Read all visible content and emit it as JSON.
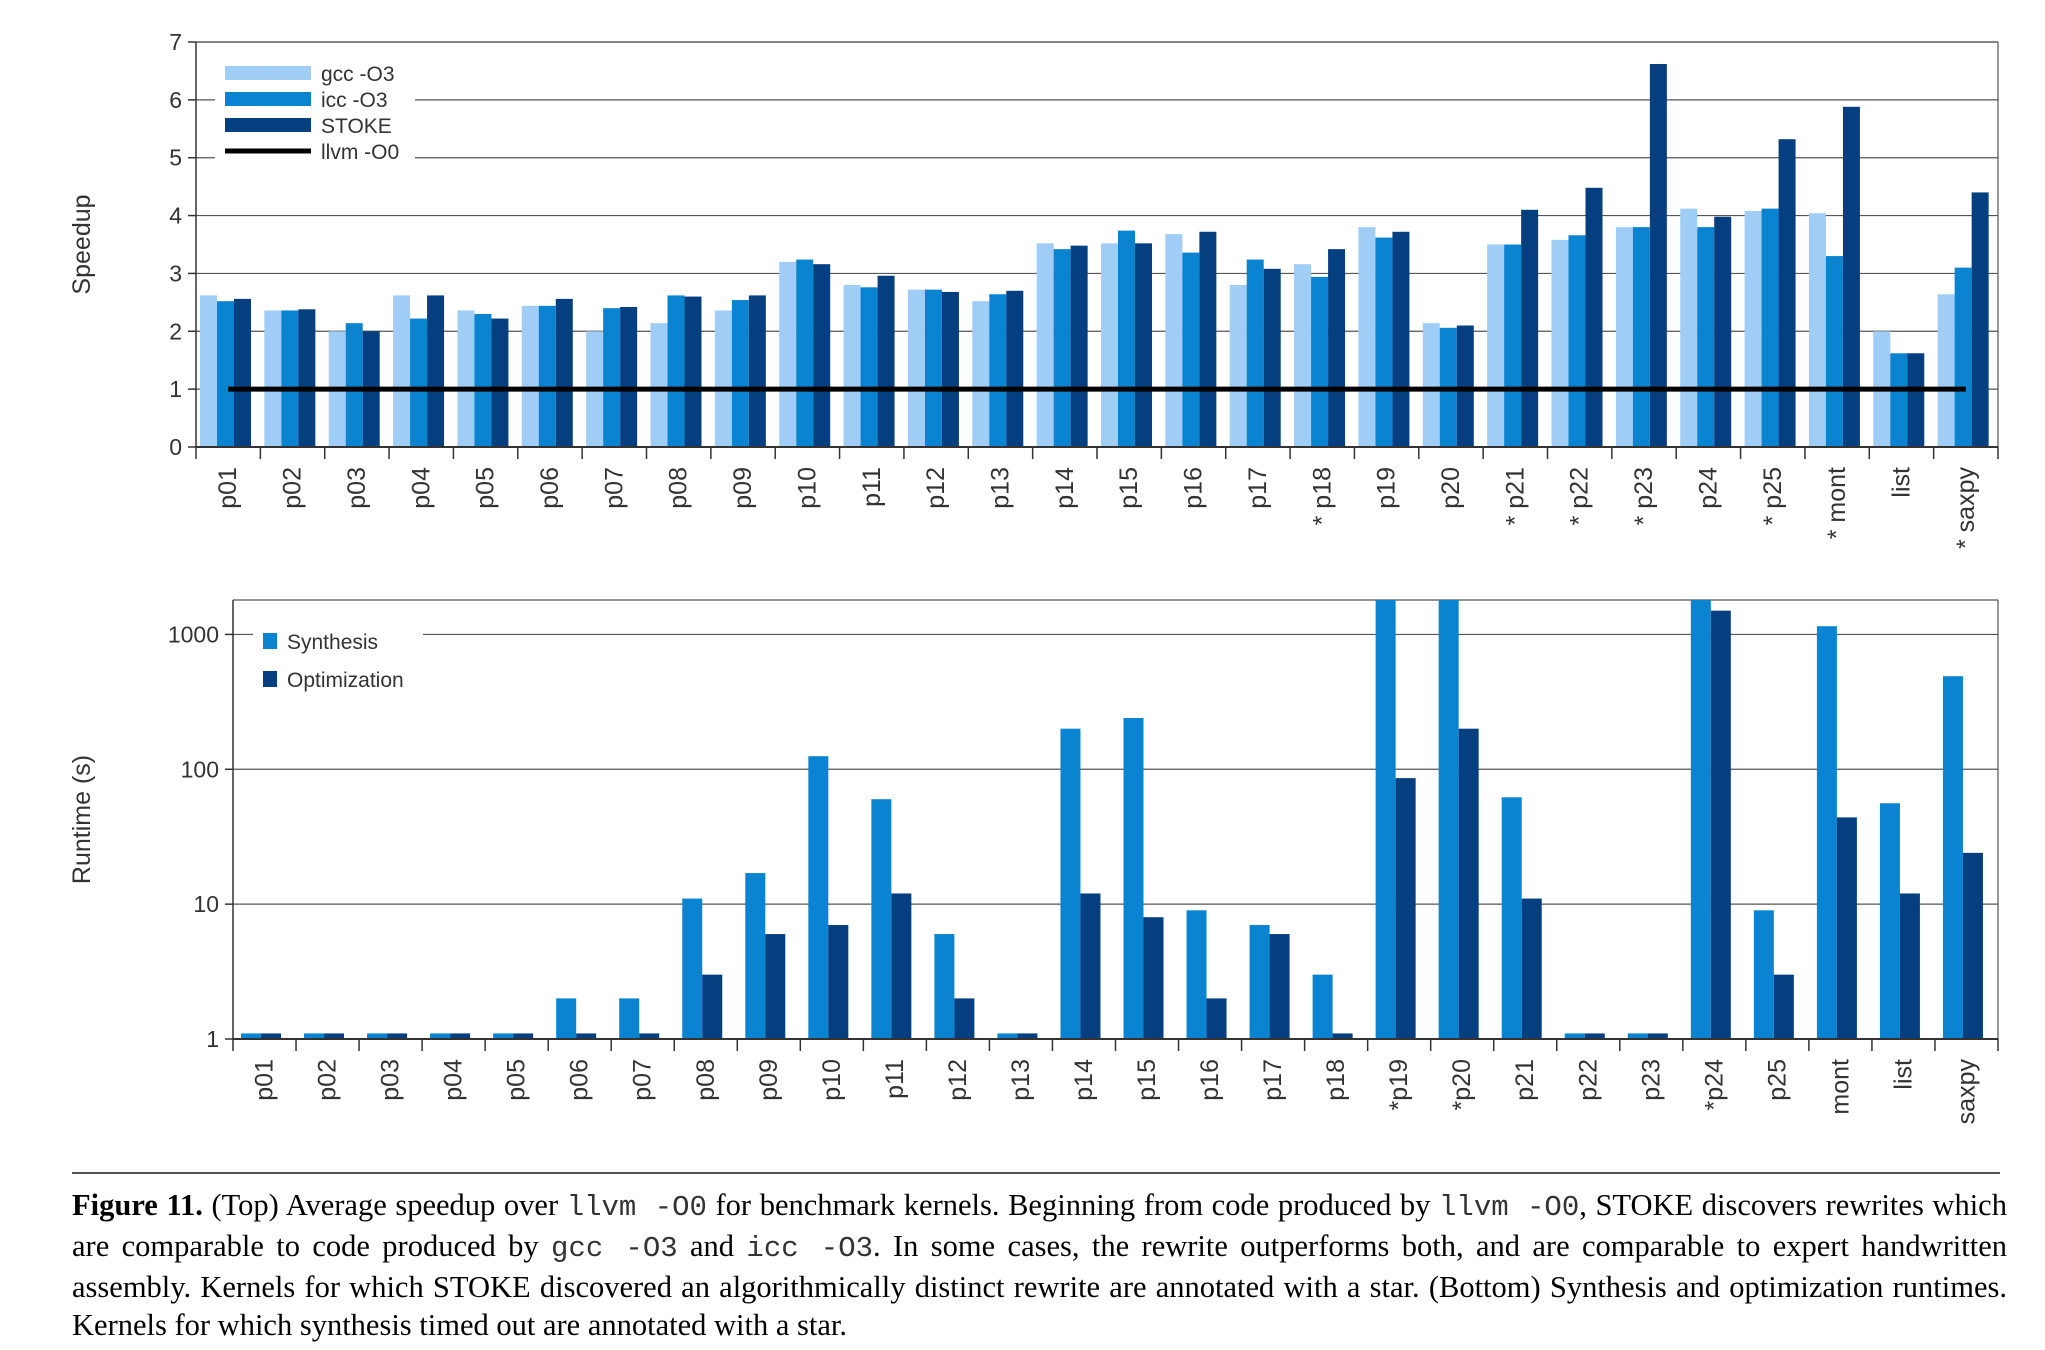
{
  "chart_data": [
    {
      "type": "bar",
      "ylabel": "Speedup",
      "ylim": [
        0,
        7
      ],
      "yticks": [
        "0",
        "1",
        "2",
        "3",
        "4",
        "5",
        "6",
        "7"
      ],
      "grid": true,
      "legend_position": "top-left",
      "categories": [
        "p01",
        "p02",
        "p03",
        "p04",
        "p05",
        "p06",
        "p07",
        "p08",
        "p09",
        "p10",
        "p11",
        "p12",
        "p13",
        "p14",
        "p15",
        "p16",
        "p17",
        "* p18",
        "p19",
        "p20",
        "* p21",
        "* p22",
        "* p23",
        "p24",
        "* p25",
        "* mont",
        "list",
        "* saxpy"
      ],
      "series": [
        {
          "name": "gcc -O3",
          "color": "#9fcdf5",
          "values": [
            2.62,
            2.36,
            2.0,
            2.62,
            2.36,
            2.44,
            2.0,
            2.14,
            2.36,
            3.2,
            2.8,
            2.72,
            2.52,
            3.52,
            3.52,
            3.68,
            2.8,
            3.16,
            3.8,
            2.14,
            3.5,
            3.58,
            3.8,
            4.12,
            4.08,
            4.04,
            2.0,
            2.64
          ]
        },
        {
          "name": "icc -O3",
          "color": "#0a84d0",
          "values": [
            2.52,
            2.36,
            2.14,
            2.22,
            2.3,
            2.44,
            2.4,
            2.62,
            2.54,
            3.24,
            2.76,
            2.72,
            2.64,
            3.42,
            3.74,
            3.36,
            3.24,
            2.94,
            3.62,
            2.06,
            3.5,
            3.66,
            3.8,
            3.8,
            4.12,
            3.3,
            1.62,
            3.1
          ]
        },
        {
          "name": "STOKE",
          "color": "#063f80",
          "values": [
            2.56,
            2.38,
            2.0,
            2.62,
            2.22,
            2.56,
            2.42,
            2.6,
            2.62,
            3.16,
            2.96,
            2.68,
            2.7,
            3.48,
            3.52,
            3.72,
            3.08,
            3.42,
            3.72,
            2.1,
            4.1,
            4.48,
            6.62,
            3.98,
            5.32,
            5.88,
            1.62,
            4.4
          ]
        }
      ],
      "baseline": {
        "name": "llvm -O0",
        "value": 1,
        "color": "#000000"
      }
    },
    {
      "type": "bar",
      "ylabel": "Runtime (s)",
      "yscale": "log",
      "ylim": [
        1,
        1800
      ],
      "yticks": [
        "1",
        "10",
        "100",
        "1000"
      ],
      "grid": true,
      "legend_position": "top-left",
      "categories": [
        "p01",
        "p02",
        "p03",
        "p04",
        "p05",
        "p06",
        "p07",
        "p08",
        "p09",
        "p10",
        "p11",
        "p12",
        "p13",
        "p14",
        "p15",
        "p16",
        "p17",
        "p18",
        "*p19",
        "*p20",
        "p21",
        "p22",
        "p23",
        "*p24",
        "p25",
        "mont",
        "list",
        "saxpy"
      ],
      "series": [
        {
          "name": "Synthesis",
          "color": "#0a84d0",
          "values": [
            1.1,
            1.1,
            1.1,
            1.1,
            1.1,
            2,
            2,
            11,
            17,
            125,
            60,
            6,
            1.1,
            200,
            240,
            9,
            7,
            3,
            1800,
            1800,
            62,
            1.1,
            1.1,
            1800,
            9,
            1150,
            56,
            490
          ]
        },
        {
          "name": "Optimization",
          "color": "#063f80",
          "values": [
            1.1,
            1.1,
            1.1,
            1.1,
            1.1,
            1.1,
            1.1,
            3,
            6,
            7,
            12,
            2,
            1.1,
            12,
            8,
            2,
            6,
            1.1,
            86,
            200,
            11,
            1.1,
            1.1,
            1500,
            3,
            44,
            12,
            24
          ]
        }
      ]
    }
  ],
  "caption": {
    "label": "Figure 11.",
    "s1": " (Top) Average speedup over ",
    "m1": "llvm -O0",
    "s2": " for benchmark kernels. Beginning from code produced by ",
    "m2": "llvm -O0",
    "s3": ", STOKE discovers rewrites which are comparable to code produced by ",
    "m3": "gcc -O3",
    "s4": " and ",
    "m4": "icc -O3",
    "s5": ". In some cases, the rewrite outperforms both, and are comparable to expert handwritten assembly. Kernels for which STOKE discovered an algorithmically distinct rewrite are annotated with a star. (Bottom) Synthesis and optimization runtimes. Kernels for which synthesis timed out are annotated with a star."
  }
}
